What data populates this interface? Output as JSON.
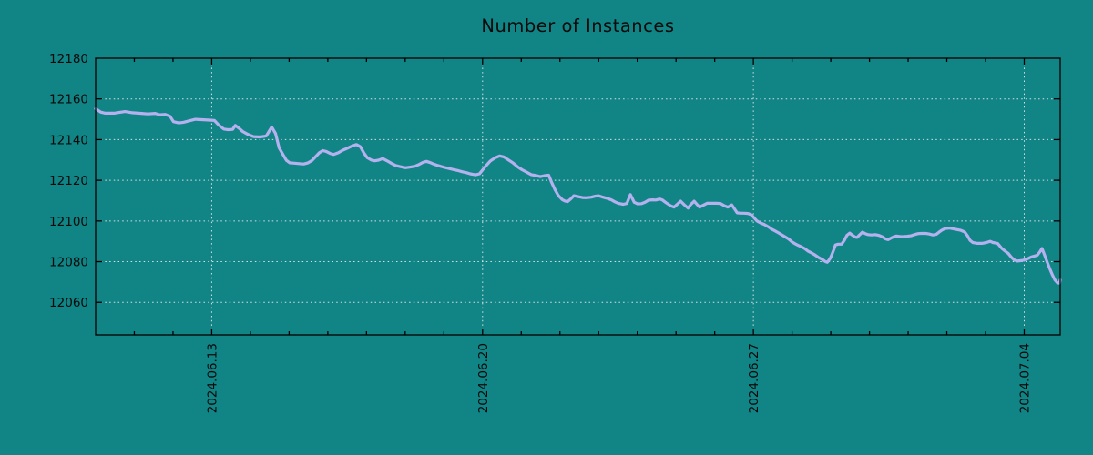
{
  "colors": {
    "background": "#118586",
    "line": "#b5b1ee",
    "grid": "#d9dede",
    "frame": "#000000",
    "text": "#0a0a0a"
  },
  "chart_data": {
    "type": "line",
    "title": "Number of Instances",
    "xlabel": "",
    "ylabel": "",
    "legend": "none",
    "grid": true,
    "x_unit": "days since 2024-06-10 (derived from visible date ticks)",
    "xlim": [
      0,
      24.93
    ],
    "ylim": [
      12044,
      12180
    ],
    "y_ticks": [
      12060,
      12080,
      12100,
      12120,
      12140,
      12160,
      12180
    ],
    "x_major_ticks": [
      {
        "day": 3,
        "label": "2024.06.13"
      },
      {
        "day": 10,
        "label": "2024.06.20"
      },
      {
        "day": 17,
        "label": "2024.06.27"
      },
      {
        "day": 24,
        "label": "2024.07.04"
      }
    ],
    "x_minor_tick_interval_days": 1,
    "series": [
      {
        "name": "instances",
        "points": [
          [
            0,
            12155.2
          ],
          [
            0.13,
            12153.5
          ],
          [
            0.25,
            12153
          ],
          [
            0.48,
            12153
          ],
          [
            0.76,
            12153.8
          ],
          [
            0.95,
            12153.2
          ],
          [
            1.19,
            12152.9
          ],
          [
            1.35,
            12152.6
          ],
          [
            1.54,
            12152.9
          ],
          [
            1.66,
            12152.2
          ],
          [
            1.8,
            12152.4
          ],
          [
            1.92,
            12151.5
          ],
          [
            2.01,
            12148.8
          ],
          [
            2.15,
            12148.2
          ],
          [
            2.27,
            12148.5
          ],
          [
            2.44,
            12149.3
          ],
          [
            2.58,
            12150
          ],
          [
            2.74,
            12149.8
          ],
          [
            2.95,
            12149.6
          ],
          [
            3.07,
            12149.4
          ],
          [
            3.19,
            12147
          ],
          [
            3.31,
            12145.2
          ],
          [
            3.42,
            12144.9
          ],
          [
            3.54,
            12145
          ],
          [
            3.61,
            12147
          ],
          [
            3.71,
            12145.5
          ],
          [
            3.8,
            12144
          ],
          [
            3.94,
            12142.5
          ],
          [
            4.08,
            12141.5
          ],
          [
            4.25,
            12141.3
          ],
          [
            4.41,
            12141.8
          ],
          [
            4.48,
            12144
          ],
          [
            4.55,
            12146.2
          ],
          [
            4.65,
            12143
          ],
          [
            4.74,
            12136
          ],
          [
            4.84,
            12132.7
          ],
          [
            4.93,
            12129.8
          ],
          [
            5.02,
            12128.6
          ],
          [
            5.14,
            12128.4
          ],
          [
            5.26,
            12128.2
          ],
          [
            5.38,
            12128
          ],
          [
            5.49,
            12128.6
          ],
          [
            5.59,
            12129.7
          ],
          [
            5.68,
            12131.5
          ],
          [
            5.78,
            12133.5
          ],
          [
            5.87,
            12134.6
          ],
          [
            5.96,
            12134.2
          ],
          [
            6.06,
            12133.2
          ],
          [
            6.15,
            12132.7
          ],
          [
            6.27,
            12133.5
          ],
          [
            6.39,
            12134.8
          ],
          [
            6.51,
            12135.8
          ],
          [
            6.62,
            12136.8
          ],
          [
            6.74,
            12137.6
          ],
          [
            6.84,
            12136.5
          ],
          [
            6.93,
            12133.5
          ],
          [
            7.02,
            12131.1
          ],
          [
            7.12,
            12130
          ],
          [
            7.21,
            12129.6
          ],
          [
            7.31,
            12129.9
          ],
          [
            7.42,
            12130.7
          ],
          [
            7.54,
            12129.5
          ],
          [
            7.64,
            12128.4
          ],
          [
            7.75,
            12127.3
          ],
          [
            7.87,
            12126.7
          ],
          [
            8.01,
            12126.2
          ],
          [
            8.13,
            12126.5
          ],
          [
            8.25,
            12126.9
          ],
          [
            8.36,
            12127.8
          ],
          [
            8.46,
            12128.8
          ],
          [
            8.55,
            12129.3
          ],
          [
            8.65,
            12128.7
          ],
          [
            8.72,
            12128.1
          ],
          [
            8.81,
            12127.5
          ],
          [
            8.91,
            12126.9
          ],
          [
            9.02,
            12126.3
          ],
          [
            9.14,
            12125.8
          ],
          [
            9.26,
            12125.2
          ],
          [
            9.38,
            12124.7
          ],
          [
            9.47,
            12124.2
          ],
          [
            9.59,
            12123.7
          ],
          [
            9.68,
            12123.2
          ],
          [
            9.75,
            12122.9
          ],
          [
            9.82,
            12122.7
          ],
          [
            9.92,
            12123.2
          ],
          [
            10.06,
            12126.5
          ],
          [
            10.2,
            12129.5
          ],
          [
            10.32,
            12131
          ],
          [
            10.44,
            12132
          ],
          [
            10.55,
            12131.5
          ],
          [
            10.67,
            12130
          ],
          [
            10.79,
            12128.5
          ],
          [
            10.91,
            12126.6
          ],
          [
            11.02,
            12125.2
          ],
          [
            11.14,
            12124
          ],
          [
            11.26,
            12122.8
          ],
          [
            11.38,
            12122.4
          ],
          [
            11.49,
            12121.8
          ],
          [
            11.61,
            12122.3
          ],
          [
            11.71,
            12122.5
          ],
          [
            11.78,
            12119.2
          ],
          [
            11.87,
            12115.5
          ],
          [
            11.96,
            12112.5
          ],
          [
            12.06,
            12110.5
          ],
          [
            12.13,
            12109.8
          ],
          [
            12.2,
            12109.5
          ],
          [
            12.29,
            12111
          ],
          [
            12.36,
            12112.4
          ],
          [
            12.46,
            12112
          ],
          [
            12.58,
            12111.5
          ],
          [
            12.69,
            12111.4
          ],
          [
            12.81,
            12111.7
          ],
          [
            12.91,
            12112.2
          ],
          [
            13,
            12112.4
          ],
          [
            13.09,
            12111.8
          ],
          [
            13.21,
            12111.2
          ],
          [
            13.33,
            12110.4
          ],
          [
            13.42,
            12109.4
          ],
          [
            13.52,
            12108.6
          ],
          [
            13.64,
            12108.2
          ],
          [
            13.73,
            12108.6
          ],
          [
            13.82,
            12113
          ],
          [
            13.92,
            12109.2
          ],
          [
            14.01,
            12108.4
          ],
          [
            14.11,
            12108.5
          ],
          [
            14.2,
            12109.2
          ],
          [
            14.29,
            12110.2
          ],
          [
            14.39,
            12110.4
          ],
          [
            14.48,
            12110.3
          ],
          [
            14.58,
            12110.8
          ],
          [
            14.65,
            12110.3
          ],
          [
            14.74,
            12109
          ],
          [
            14.86,
            12107.5
          ],
          [
            14.95,
            12106.8
          ],
          [
            15.05,
            12108.5
          ],
          [
            15.12,
            12109.7
          ],
          [
            15.21,
            12108
          ],
          [
            15.31,
            12106.3
          ],
          [
            15.38,
            12108
          ],
          [
            15.47,
            12109.7
          ],
          [
            15.54,
            12108.2
          ],
          [
            15.61,
            12106.8
          ],
          [
            15.71,
            12107.8
          ],
          [
            15.8,
            12108.7
          ],
          [
            15.92,
            12108.7
          ],
          [
            16.04,
            12108.7
          ],
          [
            16.15,
            12108.6
          ],
          [
            16.25,
            12107.5
          ],
          [
            16.34,
            12106.8
          ],
          [
            16.44,
            12107.9
          ],
          [
            16.51,
            12106
          ],
          [
            16.58,
            12104
          ],
          [
            16.67,
            12103.8
          ],
          [
            16.76,
            12103.8
          ],
          [
            16.86,
            12103.7
          ],
          [
            16.95,
            12103
          ],
          [
            17.02,
            12101.5
          ],
          [
            17.09,
            12100
          ],
          [
            17.19,
            12099
          ],
          [
            17.28,
            12098.3
          ],
          [
            17.38,
            12097.2
          ],
          [
            17.47,
            12096
          ],
          [
            17.54,
            12095.3
          ],
          [
            17.64,
            12094.3
          ],
          [
            17.73,
            12093.2
          ],
          [
            17.82,
            12092.2
          ],
          [
            17.92,
            12091
          ],
          [
            17.99,
            12089.8
          ],
          [
            18.08,
            12088.8
          ],
          [
            18.15,
            12088.1
          ],
          [
            18.22,
            12087.5
          ],
          [
            18.32,
            12086.5
          ],
          [
            18.41,
            12085.2
          ],
          [
            18.51,
            12084.2
          ],
          [
            18.6,
            12083.2
          ],
          [
            18.69,
            12082
          ],
          [
            18.79,
            12081
          ],
          [
            18.86,
            12080
          ],
          [
            18.91,
            12079.7
          ],
          [
            18.98,
            12081.5
          ],
          [
            19.02,
            12083
          ],
          [
            19.07,
            12085.5
          ],
          [
            19.12,
            12088.2
          ],
          [
            19.19,
            12088.6
          ],
          [
            19.28,
            12088.6
          ],
          [
            19.35,
            12090.5
          ],
          [
            19.42,
            12093
          ],
          [
            19.49,
            12094
          ],
          [
            19.56,
            12093
          ],
          [
            19.64,
            12092
          ],
          [
            19.68,
            12091.9
          ],
          [
            19.75,
            12093.3
          ],
          [
            19.82,
            12094.5
          ],
          [
            19.89,
            12093.8
          ],
          [
            19.96,
            12093.3
          ],
          [
            20.06,
            12093.1
          ],
          [
            20.15,
            12093.3
          ],
          [
            20.25,
            12092.9
          ],
          [
            20.34,
            12092.2
          ],
          [
            20.41,
            12091.2
          ],
          [
            20.48,
            12090.8
          ],
          [
            20.55,
            12091.5
          ],
          [
            20.62,
            12092.2
          ],
          [
            20.69,
            12092.6
          ],
          [
            20.79,
            12092.4
          ],
          [
            20.88,
            12092.3
          ],
          [
            20.98,
            12092.5
          ],
          [
            21.07,
            12092.7
          ],
          [
            21.16,
            12093.3
          ],
          [
            21.26,
            12093.8
          ],
          [
            21.35,
            12093.9
          ],
          [
            21.45,
            12093.9
          ],
          [
            21.54,
            12093.6
          ],
          [
            21.64,
            12093.1
          ],
          [
            21.73,
            12093.5
          ],
          [
            21.8,
            12094.5
          ],
          [
            21.87,
            12095.5
          ],
          [
            21.96,
            12096.3
          ],
          [
            22.06,
            12096.5
          ],
          [
            22.15,
            12096.2
          ],
          [
            22.25,
            12095.8
          ],
          [
            22.36,
            12095.4
          ],
          [
            22.46,
            12094.6
          ],
          [
            22.53,
            12092.8
          ],
          [
            22.6,
            12090.5
          ],
          [
            22.67,
            12089.4
          ],
          [
            22.79,
            12089
          ],
          [
            22.91,
            12089
          ],
          [
            23.02,
            12089.4
          ],
          [
            23.12,
            12090
          ],
          [
            23.19,
            12089.4
          ],
          [
            23.31,
            12089
          ],
          [
            23.42,
            12086.5
          ],
          [
            23.52,
            12085
          ],
          [
            23.59,
            12084
          ],
          [
            23.66,
            12082.3
          ],
          [
            23.73,
            12081
          ],
          [
            23.82,
            12080.3
          ],
          [
            23.92,
            12080.5
          ],
          [
            24.01,
            12080.9
          ],
          [
            24.08,
            12081.4
          ],
          [
            24.18,
            12082.3
          ],
          [
            24.27,
            12082.8
          ],
          [
            24.34,
            12083.2
          ],
          [
            24.41,
            12085
          ],
          [
            24.46,
            12086.5
          ],
          [
            24.51,
            12084
          ],
          [
            24.58,
            12080.5
          ],
          [
            24.65,
            12077
          ],
          [
            24.72,
            12073.8
          ],
          [
            24.79,
            12071
          ],
          [
            24.86,
            12069.6
          ],
          [
            24.91,
            12069.4
          ],
          [
            24.93,
            12071
          ]
        ]
      }
    ]
  }
}
